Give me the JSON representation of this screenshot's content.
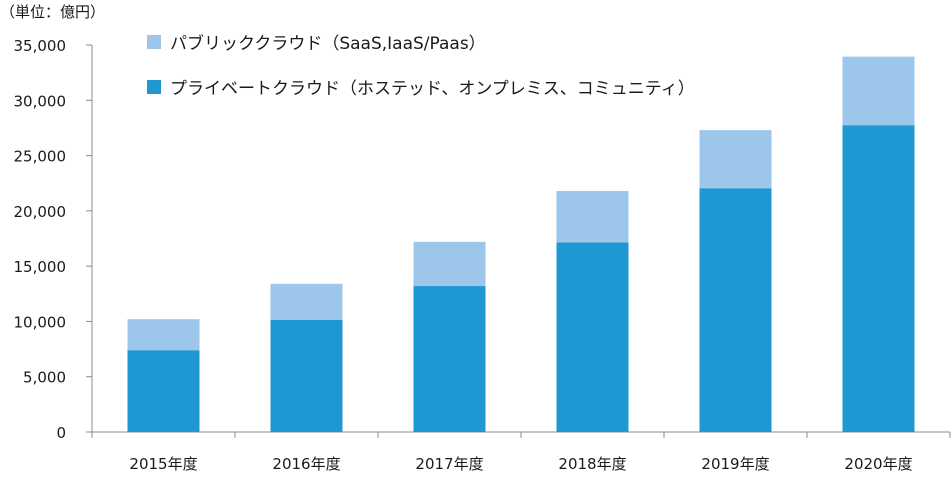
{
  "chart_data": {
    "type": "bar",
    "stacked": true,
    "unit_label": "（単位：億円）",
    "categories": [
      "2015年度",
      "2016年度",
      "2017年度",
      "2018年度",
      "2019年度",
      "2020年度"
    ],
    "series": [
      {
        "name": "プライベートクラウド（ホステッド、オンプレミス、コミュニティ）",
        "color": "#1f97d3",
        "values": [
          7400,
          10150,
          13200,
          17150,
          22050,
          27750
        ]
      },
      {
        "name": "パブリッククラウド（SaaS,IaaS/Paas）",
        "color": "#9cc7eb",
        "values": [
          2800,
          3250,
          4000,
          4650,
          5250,
          6200
        ]
      }
    ],
    "legend_order": [
      1,
      0
    ],
    "legend_position": "top-left",
    "ylim": [
      0,
      35000
    ],
    "yticks": [
      0,
      5000,
      10000,
      15000,
      20000,
      25000,
      30000,
      35000
    ],
    "ytick_labels": [
      "0",
      "5,000",
      "10,000",
      "15,000",
      "20,000",
      "25,000",
      "30,000",
      "35,000"
    ],
    "grid": false,
    "axis_color": "#8c8c8c"
  }
}
